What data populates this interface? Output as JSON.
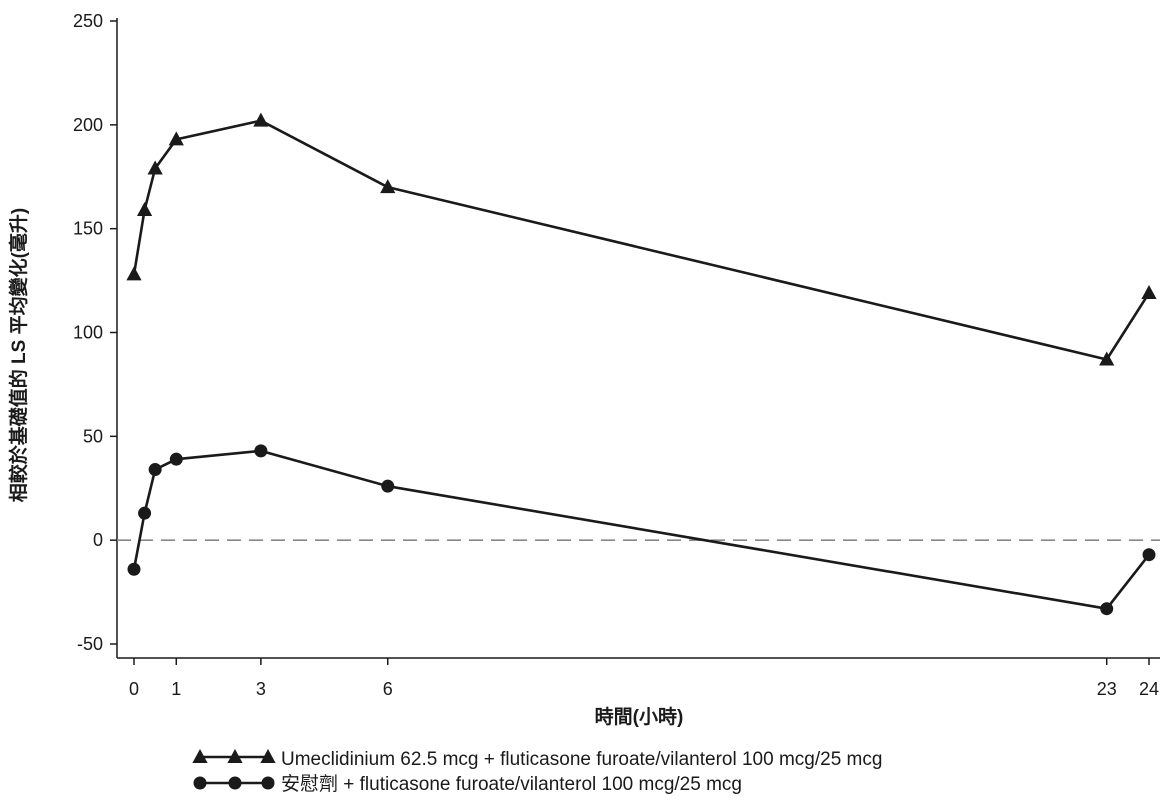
{
  "chart_data": {
    "type": "line",
    "title": "",
    "xlabel": "時間(小時)",
    "ylabel": "相較於基礎值的 LS 平均變化(毫升)",
    "xlim": [
      0,
      24
    ],
    "ylim": [
      -50,
      250
    ],
    "xticks": [
      0,
      1,
      3,
      6,
      23,
      24
    ],
    "yticks": [
      -50,
      0,
      50,
      100,
      150,
      200,
      250
    ],
    "reference_line": {
      "y": 0,
      "style": "dashed",
      "color": "#888888"
    },
    "grid": false,
    "legend_position": "bottom",
    "series": [
      {
        "name": "Umeclidinium 62.5 mcg + fluticasone furoate/vilanterol 100 mcg/25 mcg",
        "marker": "triangle",
        "color": "#1a1a1a",
        "x": [
          0,
          0.25,
          0.5,
          1,
          3,
          6,
          23,
          24
        ],
        "y": [
          128,
          159,
          179,
          193,
          202,
          170,
          87,
          119
        ]
      },
      {
        "name": "安慰劑 + fluticasone furoate/vilanterol 100 mcg/25 mcg",
        "marker": "circle",
        "color": "#1a1a1a",
        "x": [
          0,
          0.25,
          0.5,
          1,
          3,
          6,
          23,
          24
        ],
        "y": [
          -14,
          13,
          34,
          39,
          43,
          26,
          -33,
          -7
        ]
      }
    ]
  }
}
